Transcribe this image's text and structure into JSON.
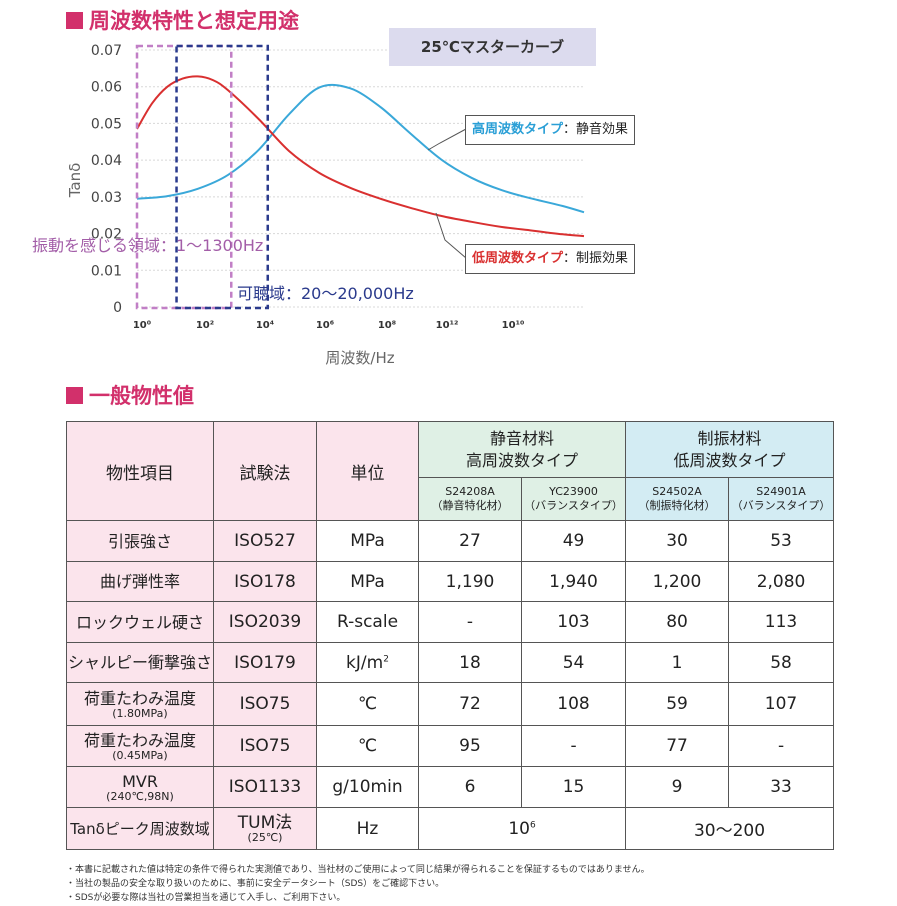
{
  "section1": {
    "title": "周波数特性と想定用途"
  },
  "section2": {
    "title": "一般物性値"
  },
  "chart_data": {
    "type": "line",
    "title": "25℃マスターカーブ",
    "ylabel": "Tanδ",
    "xlabel": "周波数/Hz",
    "yticks": [
      "0.07",
      "0.06",
      "0.05",
      "0.04",
      "0.03",
      "0.02",
      "0.01",
      "0"
    ],
    "xticks": [
      "10⁰",
      "10²",
      "10⁴",
      "10⁶",
      "10⁸",
      "10¹²",
      "10¹⁰"
    ],
    "ylim": [
      0,
      0.07
    ],
    "xlim_log10": [
      0,
      14.7
    ],
    "grid": "horizontal dotted",
    "series": [
      {
        "name": "高周波数タイプ：静音効果",
        "color": "#3aa8d9",
        "x": [
          0,
          1,
          2,
          3,
          4,
          5,
          6,
          7,
          8,
          9,
          10,
          11,
          12,
          13,
          14,
          14.7
        ],
        "y": [
          0.0295,
          0.0302,
          0.0322,
          0.036,
          0.0428,
          0.0525,
          0.0598,
          0.0596,
          0.0545,
          0.0472,
          0.0402,
          0.0352,
          0.0318,
          0.0295,
          0.0275,
          0.0258
        ]
      },
      {
        "name": "低周波数タイプ：制振効果",
        "color": "#d93030",
        "x": [
          0,
          0.5,
          1,
          1.5,
          2,
          2.5,
          3,
          4,
          5,
          6,
          7,
          8,
          9,
          10,
          11,
          12,
          13,
          14,
          14.7
        ],
        "y": [
          0.0485,
          0.0555,
          0.06,
          0.0622,
          0.0628,
          0.0618,
          0.059,
          0.0512,
          0.0425,
          0.0365,
          0.0325,
          0.0295,
          0.027,
          0.0248,
          0.0232,
          0.0218,
          0.0208,
          0.0198,
          0.0193
        ]
      }
    ],
    "regions": [
      {
        "label": "振動を感じる領域：1～1300Hz",
        "color": "#c17fc6",
        "x_log10": [
          0,
          3.1
        ]
      },
      {
        "label": "可聴域：20～20,000Hz",
        "color": "#2a3a8c",
        "x_log10": [
          1.3,
          4.3
        ]
      }
    ]
  },
  "callouts": {
    "high": {
      "type": "高周波数タイプ",
      "sep": "：",
      "effect": "静音効果"
    },
    "low": {
      "type": "低周波数タイプ",
      "sep": "：",
      "effect": "制振効果"
    }
  },
  "table": {
    "headers": {
      "item": "物性項目",
      "method": "試験法",
      "unit": "単位",
      "group1_line1": "静音材料",
      "group1_line2": "高周波数タイプ",
      "group2_line1": "制振材料",
      "group2_line2": "低周波数タイプ",
      "grades": [
        {
          "code": "S24208A",
          "sub": "（静音特化材）"
        },
        {
          "code": "YC23900",
          "sub": "（バランスタイプ）"
        },
        {
          "code": "S24502A",
          "sub": "（制振特化材）"
        },
        {
          "code": "S24901A",
          "sub": "（バランスタイプ）"
        }
      ]
    },
    "rows": [
      {
        "item": "引張強さ",
        "item_sub": "",
        "method": "ISO527",
        "method_sub": "",
        "unit": "MPa",
        "unit_sup": "",
        "values": [
          "27",
          "49",
          "30",
          "53"
        ]
      },
      {
        "item": "曲げ弾性率",
        "item_sub": "",
        "method": "ISO178",
        "method_sub": "",
        "unit": "MPa",
        "unit_sup": "",
        "values": [
          "1,190",
          "1,940",
          "1,200",
          "2,080"
        ]
      },
      {
        "item": "ロックウェル硬さ",
        "item_sub": "",
        "method": "ISO2039",
        "method_sub": "",
        "unit": "R-scale",
        "unit_sup": "",
        "values": [
          "-",
          "103",
          "80",
          "113"
        ]
      },
      {
        "item": "シャルピー衝撃強さ",
        "item_sub": "",
        "method": "ISO179",
        "method_sub": "",
        "unit": "kJ/m",
        "unit_sup": "2",
        "values": [
          "18",
          "54",
          "1",
          "58"
        ]
      },
      {
        "item": "荷重たわみ温度",
        "item_sub": "(1.80MPa)",
        "method": "ISO75",
        "method_sub": "",
        "unit": "℃",
        "unit_sup": "",
        "values": [
          "72",
          "108",
          "59",
          "107"
        ]
      },
      {
        "item": "荷重たわみ温度",
        "item_sub": "(0.45MPa)",
        "method": "ISO75",
        "method_sub": "",
        "unit": "℃",
        "unit_sup": "",
        "values": [
          "95",
          "-",
          "77",
          "-"
        ]
      },
      {
        "item": "MVR",
        "item_sub": "(240℃,98N)",
        "method": "ISO1133",
        "method_sub": "",
        "unit": "g/10min",
        "unit_sup": "",
        "values": [
          "6",
          "15",
          "9",
          "33"
        ]
      }
    ],
    "last_row": {
      "item": "Tanδピーク周波数域",
      "method": "TUM法",
      "method_sub": "(25℃)",
      "unit": "Hz",
      "high_base": "10",
      "high_sup": "6",
      "low": "30～200"
    }
  },
  "notes": [
    "・本書に記載された値は特定の条件で得られた実測値であり、当社材のご使用によって同じ結果が得られることを保証するものではありません。",
    "・当社の製品の安全な取り扱いのために、事前に安全データシート（SDS）をご確認下さい。",
    "・SDSが必要な際は当社の営業担当を通じて入手し、ご利用下さい。"
  ]
}
